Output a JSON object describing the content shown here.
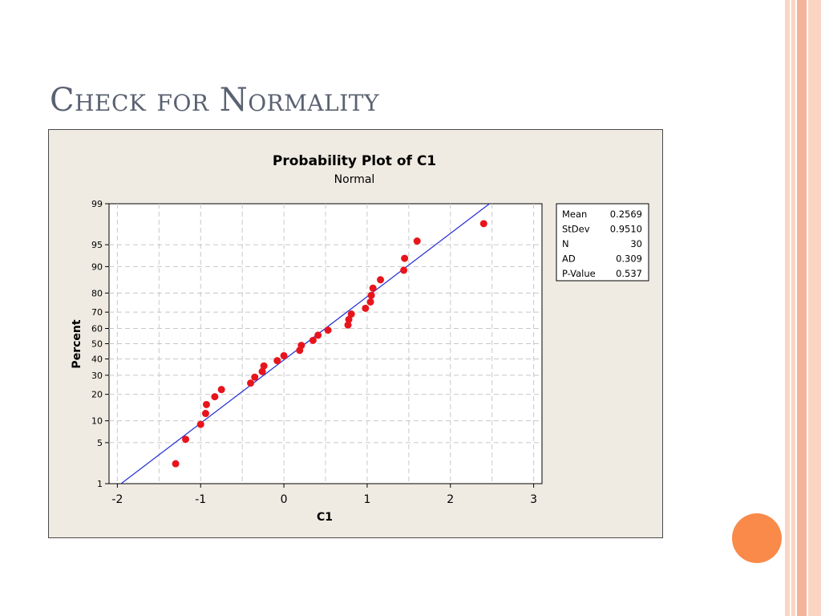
{
  "slide": {
    "title": "Check for Normality"
  },
  "colors": {
    "accent_orange": "#f98a4a",
    "stripe_light": "#fbd5c4",
    "stripe_mid": "#f5b49a",
    "title_color": "#5a6171",
    "panel_bg": "#efebe2",
    "point_color": "#e8141c",
    "line_color": "#1f2bd4",
    "grid_color": "#c8c8c8"
  },
  "chart_data": {
    "type": "scatter",
    "title": "Probability Plot of C1",
    "subtitle": "Normal",
    "xlabel": "C1",
    "ylabel": "Percent",
    "xlim": [
      -2.1,
      3.1
    ],
    "ylim": [
      1,
      99
    ],
    "y_scale": "normal-probability",
    "grid": true,
    "x_ticks": [
      "-2",
      "-1",
      "0",
      "1",
      "2",
      "3"
    ],
    "x_tick_values": [
      -2,
      -1,
      0,
      1,
      2,
      3
    ],
    "y_ticks": [
      "1",
      "5",
      "10",
      "20",
      "30",
      "40",
      "50",
      "60",
      "70",
      "80",
      "90",
      "95",
      "99"
    ],
    "y_tick_values": [
      1,
      5,
      10,
      20,
      30,
      40,
      50,
      60,
      70,
      80,
      90,
      95,
      99
    ],
    "fit_line": {
      "mean": 0.2569,
      "stdev": 0.951
    },
    "points": [
      [
        -1.3,
        2.3
      ],
      [
        -1.18,
        5.6
      ],
      [
        -1.0,
        9.0
      ],
      [
        -0.94,
        12.3
      ],
      [
        -0.93,
        15.6
      ],
      [
        -0.83,
        18.9
      ],
      [
        -0.75,
        22.3
      ],
      [
        -0.4,
        25.6
      ],
      [
        -0.35,
        28.9
      ],
      [
        -0.26,
        32.2
      ],
      [
        -0.24,
        35.6
      ],
      [
        -0.08,
        38.9
      ],
      [
        0.0,
        42.1
      ],
      [
        0.19,
        45.6
      ],
      [
        0.21,
        48.9
      ],
      [
        0.35,
        52.2
      ],
      [
        0.41,
        55.6
      ],
      [
        0.53,
        58.9
      ],
      [
        0.77,
        62.2
      ],
      [
        0.78,
        65.6
      ],
      [
        0.81,
        68.9
      ],
      [
        0.98,
        72.2
      ],
      [
        1.04,
        75.6
      ],
      [
        1.05,
        78.9
      ],
      [
        1.07,
        82.2
      ],
      [
        1.16,
        85.6
      ],
      [
        1.44,
        88.9
      ],
      [
        1.45,
        92.2
      ],
      [
        1.6,
        95.6
      ],
      [
        2.4,
        97.7
      ]
    ],
    "stats_box": {
      "placement": "right",
      "rows": [
        {
          "label": "Mean",
          "value": "0.2569"
        },
        {
          "label": "StDev",
          "value": "0.9510"
        },
        {
          "label": "N",
          "value": "30"
        },
        {
          "label": "AD",
          "value": "0.309"
        },
        {
          "label": "P-Value",
          "value": "0.537"
        }
      ]
    }
  }
}
